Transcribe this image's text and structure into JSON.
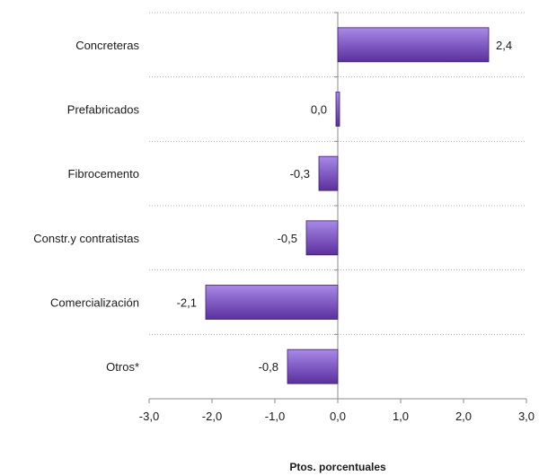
{
  "chart_data": {
    "type": "bar",
    "orientation": "horizontal",
    "categories": [
      "Concreteras",
      "Prefabricados",
      "Fibrocemento",
      "Constr.y contratistas",
      "Comercialización",
      "Otros*"
    ],
    "values": [
      2.4,
      0.0,
      -0.3,
      -0.5,
      -2.1,
      -0.8
    ],
    "value_labels": [
      "2,4",
      "0,0",
      "-0,3",
      "-0,5",
      "-2,1",
      "-0,8"
    ],
    "xlabel": "Ptos. porcentuales",
    "ylabel": "",
    "xlim": [
      -3.0,
      3.0
    ],
    "x_ticks": [
      -3.0,
      -2.0,
      -1.0,
      0.0,
      1.0,
      2.0,
      3.0
    ],
    "x_tick_labels": [
      "-3,0",
      "-2,0",
      "-1,0",
      "0,0",
      "1,0",
      "2,0",
      "3,0"
    ],
    "grid": "horizontal dotted separators",
    "legend": "none",
    "colors": {
      "bar_top": "#a889e8",
      "bar_bottom": "#5a2f9e",
      "bar_edge": "#3b1e73"
    }
  }
}
